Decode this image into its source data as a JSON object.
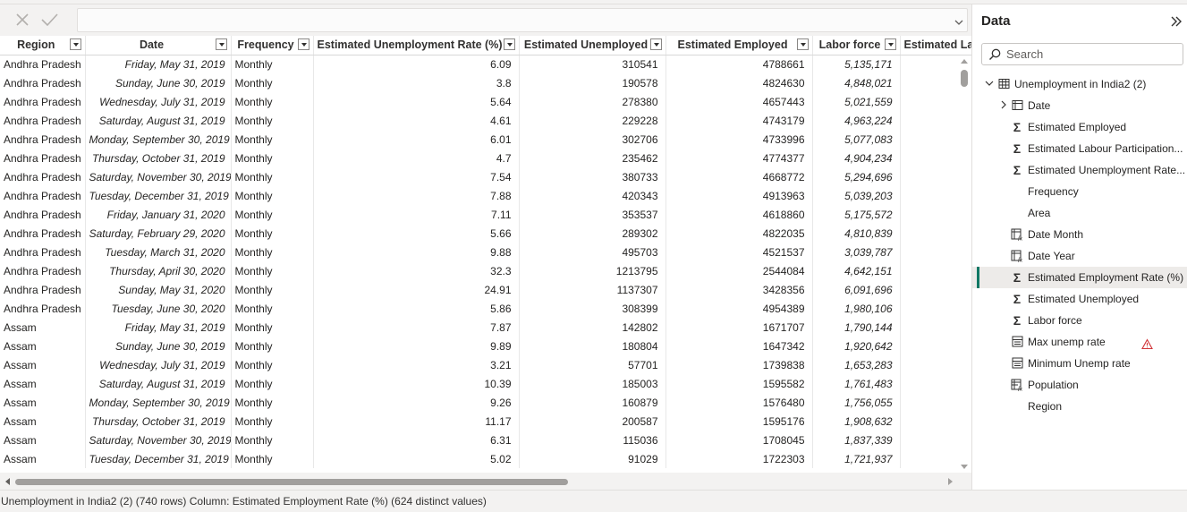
{
  "formula_bar": {
    "cancel_icon": "close-icon",
    "commit_icon": "check-icon",
    "value": ""
  },
  "table": {
    "columns": [
      "Region",
      "Date",
      "Frequency",
      "Estimated Unemployment Rate (%)",
      "Estimated Unemployed",
      "Estimated Employed",
      "Labor force",
      "Estimated Labou"
    ],
    "rows": [
      [
        "Andhra Pradesh",
        "Friday, May 31, 2019",
        "Monthly",
        "6.09",
        "310541",
        "4788661",
        "5,135,171"
      ],
      [
        "Andhra Pradesh",
        "Sunday, June 30, 2019",
        "Monthly",
        "3.8",
        "190578",
        "4824630",
        "4,848,021"
      ],
      [
        "Andhra Pradesh",
        "Wednesday, July 31, 2019",
        "Monthly",
        "5.64",
        "278380",
        "4657443",
        "5,021,559"
      ],
      [
        "Andhra Pradesh",
        "Saturday, August 31, 2019",
        "Monthly",
        "4.61",
        "229228",
        "4743179",
        "4,963,224"
      ],
      [
        "Andhra Pradesh",
        "Monday, September 30, 2019",
        "Monthly",
        "6.01",
        "302706",
        "4733996",
        "5,077,083"
      ],
      [
        "Andhra Pradesh",
        "Thursday, October 31, 2019",
        "Monthly",
        "4.7",
        "235462",
        "4774377",
        "4,904,234"
      ],
      [
        "Andhra Pradesh",
        "Saturday, November 30, 2019",
        "Monthly",
        "7.54",
        "380733",
        "4668772",
        "5,294,696"
      ],
      [
        "Andhra Pradesh",
        "Tuesday, December 31, 2019",
        "Monthly",
        "7.88",
        "420343",
        "4913963",
        "5,039,203"
      ],
      [
        "Andhra Pradesh",
        "Friday, January 31, 2020",
        "Monthly",
        "7.11",
        "353537",
        "4618860",
        "5,175,572"
      ],
      [
        "Andhra Pradesh",
        "Saturday, February 29, 2020",
        "Monthly",
        "5.66",
        "289302",
        "4822035",
        "4,810,839"
      ],
      [
        "Andhra Pradesh",
        "Tuesday, March 31, 2020",
        "Monthly",
        "9.88",
        "495703",
        "4521537",
        "3,039,787"
      ],
      [
        "Andhra Pradesh",
        "Thursday, April 30, 2020",
        "Monthly",
        "32.3",
        "1213795",
        "2544084",
        "4,642,151"
      ],
      [
        "Andhra Pradesh",
        "Sunday, May 31, 2020",
        "Monthly",
        "24.91",
        "1137307",
        "3428356",
        "6,091,696"
      ],
      [
        "Andhra Pradesh",
        "Tuesday, June 30, 2020",
        "Monthly",
        "5.86",
        "308399",
        "4954389",
        "1,980,106"
      ],
      [
        "Assam",
        "Friday, May 31, 2019",
        "Monthly",
        "7.87",
        "142802",
        "1671707",
        "1,790,144"
      ],
      [
        "Assam",
        "Sunday, June 30, 2019",
        "Monthly",
        "9.89",
        "180804",
        "1647342",
        "1,920,642"
      ],
      [
        "Assam",
        "Wednesday, July 31, 2019",
        "Monthly",
        "3.21",
        "57701",
        "1739838",
        "1,653,283"
      ],
      [
        "Assam",
        "Saturday, August 31, 2019",
        "Monthly",
        "10.39",
        "185003",
        "1595582",
        "1,761,483"
      ],
      [
        "Assam",
        "Monday, September 30, 2019",
        "Monthly",
        "9.26",
        "160879",
        "1576480",
        "1,756,055"
      ],
      [
        "Assam",
        "Thursday, October 31, 2019",
        "Monthly",
        "11.17",
        "200587",
        "1595176",
        "1,908,632"
      ],
      [
        "Assam",
        "Saturday, November 30, 2019",
        "Monthly",
        "6.31",
        "115036",
        "1708045",
        "1,837,339"
      ],
      [
        "Assam",
        "Tuesday, December 31, 2019",
        "Monthly",
        "5.02",
        "91029",
        "1722303",
        "1,721,937"
      ]
    ]
  },
  "status_bar": {
    "text": "Unemployment in India2 (2) (740 rows) Column: Estimated Employment Rate (%) (624 distinct values)"
  },
  "data_pane": {
    "title": "Data",
    "collapse_icon": "double-chevron-right-icon",
    "search_placeholder": "Search",
    "table_name": "Unemployment in India2 (2)",
    "fields": [
      {
        "label": "Date",
        "icon": "calendar-table-icon",
        "expandable": true
      },
      {
        "label": "Estimated Employed",
        "icon": "sigma-icon"
      },
      {
        "label": "Estimated Labour Participation...",
        "icon": "sigma-icon"
      },
      {
        "label": "Estimated Unemployment Rate...",
        "icon": "sigma-icon"
      },
      {
        "label": "Frequency",
        "icon": ""
      },
      {
        "label": "Area",
        "icon": ""
      },
      {
        "label": "Date Month",
        "icon": "calculated-column-icon"
      },
      {
        "label": "Date Year",
        "icon": "calculated-column-icon"
      },
      {
        "label": "Estimated Employment Rate (%)",
        "icon": "sigma-icon",
        "selected": true
      },
      {
        "label": "Estimated Unemployed",
        "icon": "sigma-icon"
      },
      {
        "label": "Labor force",
        "icon": "sigma-icon"
      },
      {
        "label": "Max unemp rate",
        "icon": "measure-icon",
        "warning": true
      },
      {
        "label": "Minimum Unemp rate",
        "icon": "measure-icon"
      },
      {
        "label": "Population",
        "icon": "calculated-table-icon"
      },
      {
        "label": "Region",
        "icon": ""
      }
    ]
  },
  "colors": {
    "accent": "#117865",
    "warning": "#d13438",
    "selected_row": "#edebe9"
  }
}
